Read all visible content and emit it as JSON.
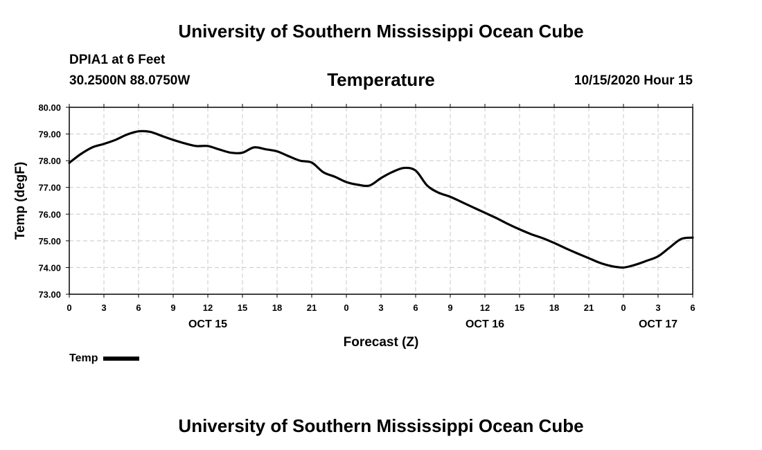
{
  "header": {
    "main_title": "University of Southern Mississippi Ocean Cube",
    "station_name": "DPIA1 at 6 Feet",
    "station_coords": "30.2500N 88.0750W",
    "run_time": "10/15/2020 Hour 15"
  },
  "footer": {
    "title": "University of Southern Mississippi Ocean Cube"
  },
  "legend": {
    "label": "Temp"
  },
  "chart_data": {
    "type": "line",
    "title": "Temperature",
    "xlabel": "Forecast (Z)",
    "ylabel": "Temp (degF)",
    "ylim": [
      73.0,
      80.0
    ],
    "xlim": [
      0,
      54
    ],
    "x_unit": "hours since 10/15/2020 00Z",
    "grid": true,
    "y_ticks": [
      "73.00",
      "74.00",
      "75.00",
      "76.00",
      "77.00",
      "78.00",
      "79.00",
      "80.00"
    ],
    "x_ticks": [
      {
        "x": 0,
        "label": "0"
      },
      {
        "x": 3,
        "label": "3"
      },
      {
        "x": 6,
        "label": "6"
      },
      {
        "x": 9,
        "label": "9"
      },
      {
        "x": 12,
        "label": "12"
      },
      {
        "x": 15,
        "label": "15"
      },
      {
        "x": 18,
        "label": "18"
      },
      {
        "x": 21,
        "label": "21"
      },
      {
        "x": 24,
        "label": "0"
      },
      {
        "x": 27,
        "label": "3"
      },
      {
        "x": 30,
        "label": "6"
      },
      {
        "x": 33,
        "label": "9"
      },
      {
        "x": 36,
        "label": "12"
      },
      {
        "x": 39,
        "label": "15"
      },
      {
        "x": 42,
        "label": "18"
      },
      {
        "x": 45,
        "label": "21"
      },
      {
        "x": 48,
        "label": "0"
      },
      {
        "x": 51,
        "label": "3"
      },
      {
        "x": 54,
        "label": "6"
      }
    ],
    "date_labels": [
      {
        "x": 12,
        "label": "OCT 15"
      },
      {
        "x": 36,
        "label": "OCT 16"
      },
      {
        "x": 51,
        "label": "OCT 17"
      }
    ],
    "series": [
      {
        "name": "Temp",
        "x": [
          0,
          1,
          2,
          3,
          4,
          5,
          6,
          7,
          8,
          9,
          10,
          11,
          12,
          13,
          14,
          15,
          16,
          17,
          18,
          19,
          20,
          21,
          22,
          23,
          24,
          25,
          26,
          27,
          28,
          29,
          30,
          31,
          32,
          33,
          34,
          35,
          36,
          37,
          38,
          39,
          40,
          41,
          42,
          43,
          44,
          45,
          46,
          47,
          48,
          49,
          50,
          51,
          52,
          53,
          54
        ],
        "values": [
          77.92,
          78.25,
          78.5,
          78.63,
          78.78,
          78.98,
          79.1,
          79.08,
          78.93,
          78.78,
          78.65,
          78.55,
          78.55,
          78.42,
          78.3,
          78.3,
          78.5,
          78.43,
          78.35,
          78.17,
          78.0,
          77.93,
          77.57,
          77.4,
          77.2,
          77.1,
          77.07,
          77.35,
          77.58,
          77.73,
          77.63,
          77.07,
          76.8,
          76.65,
          76.45,
          76.25,
          76.05,
          75.85,
          75.63,
          75.43,
          75.25,
          75.1,
          74.92,
          74.72,
          74.53,
          74.35,
          74.17,
          74.05,
          74.0,
          74.1,
          74.25,
          74.42,
          74.75,
          75.07,
          75.12
        ]
      }
    ]
  }
}
